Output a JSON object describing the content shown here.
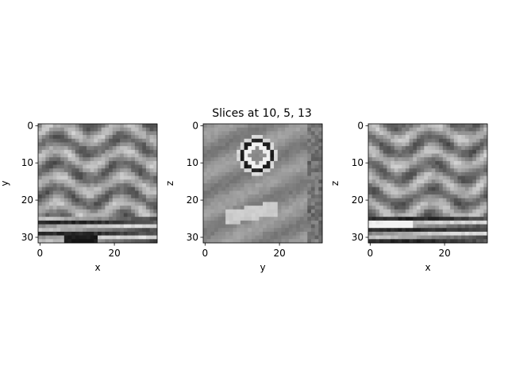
{
  "figure": {
    "title": "Slices at 10, 5, 13"
  },
  "chart_data": [
    {
      "type": "heatmap",
      "colormap": "gray",
      "grid": false,
      "xlabel": "x",
      "ylabel": "y",
      "xlim": [
        -0.5,
        31.5
      ],
      "ylim": [
        31.5,
        -0.5
      ],
      "xticks": [
        0,
        20
      ],
      "yticks": [
        0,
        10,
        20,
        30
      ],
      "xtick_labels": [
        "0",
        "20"
      ],
      "ytick_labels": [
        "0",
        "10",
        "20",
        "30"
      ],
      "image_size": [
        32,
        32
      ]
    },
    {
      "type": "heatmap",
      "colormap": "gray",
      "grid": false,
      "xlabel": "y",
      "ylabel": "z",
      "xlim": [
        -0.5,
        31.5
      ],
      "ylim": [
        31.5,
        -0.5
      ],
      "xticks": [
        0,
        20
      ],
      "yticks": [
        0,
        10,
        20,
        30
      ],
      "xtick_labels": [
        "0",
        "20"
      ],
      "ytick_labels": [
        "0",
        "10",
        "20",
        "30"
      ],
      "image_size": [
        32,
        32
      ]
    },
    {
      "type": "heatmap",
      "colormap": "gray",
      "grid": false,
      "xlabel": "x",
      "ylabel": "z",
      "xlim": [
        -0.5,
        31.5
      ],
      "ylim": [
        31.5,
        -0.5
      ],
      "xticks": [
        0,
        20
      ],
      "yticks": [
        0,
        10,
        20,
        30
      ],
      "xtick_labels": [
        "0",
        "20"
      ],
      "ytick_labels": [
        "0",
        "10",
        "20",
        "30"
      ],
      "image_size": [
        32,
        32
      ]
    }
  ]
}
